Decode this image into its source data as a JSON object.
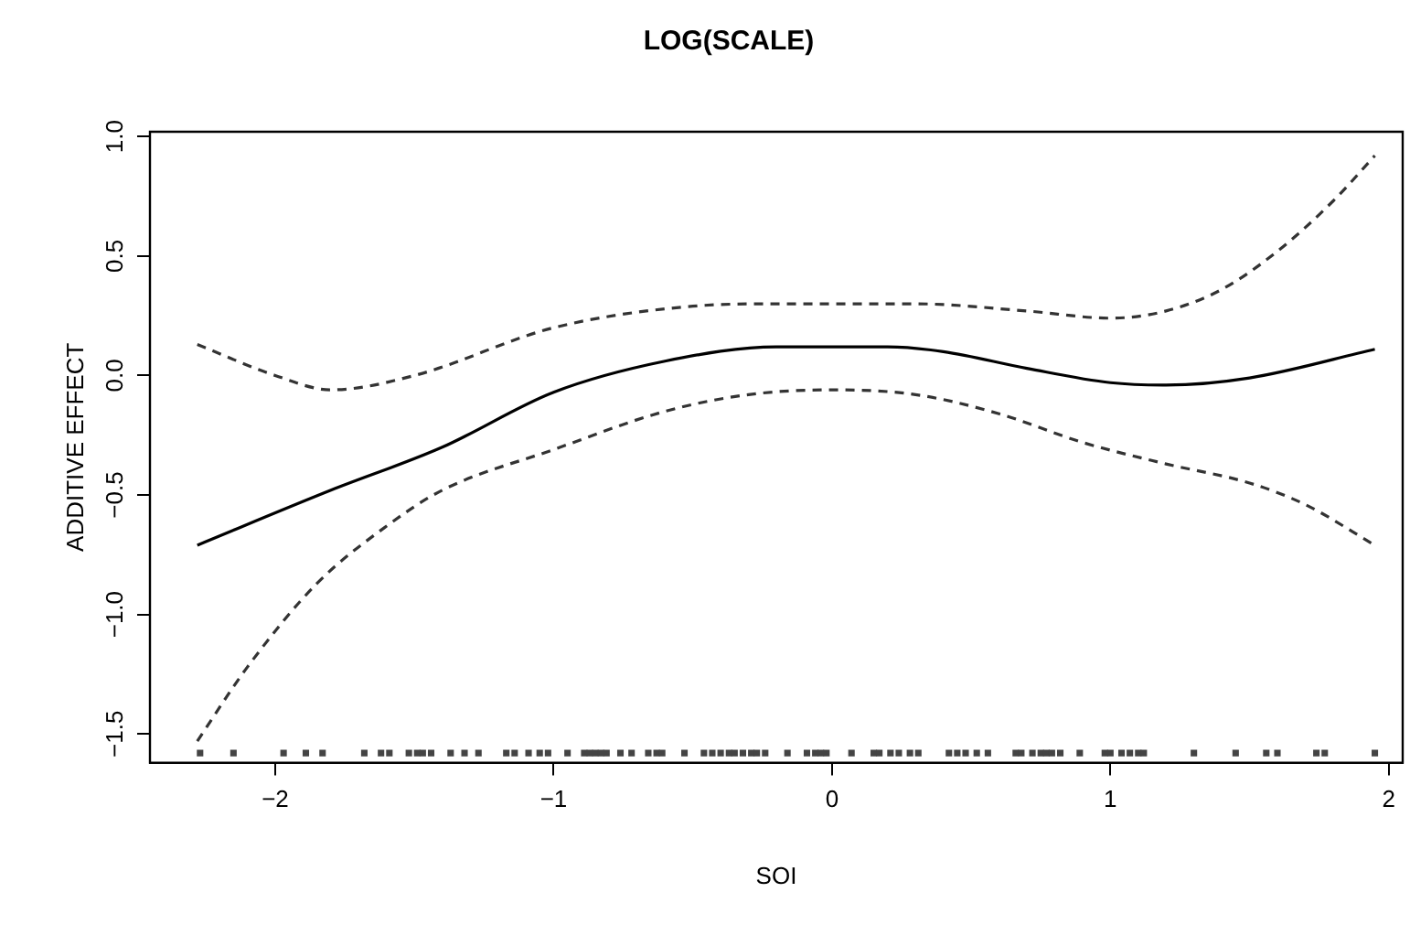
{
  "chart_data": {
    "type": "line",
    "title": "LOG(SCALE)",
    "xlabel": "SOI",
    "ylabel": "ADDITIVE EFFECT",
    "xlim": [
      -2.45,
      2.05
    ],
    "xticks": [
      -2,
      -1,
      0,
      1,
      2
    ],
    "ylim": [
      -1.62,
      1.02
    ],
    "yticks": [
      -1.5,
      {
        "value": -1,
        "label": "−1.0"
      },
      -0.5,
      {
        "value": 0,
        "label": "0.0"
      },
      0.5,
      {
        "value": 1,
        "label": "1.0"
      }
    ],
    "grid": false,
    "legend": false,
    "marker": "none",
    "series": [
      {
        "color": "#000000",
        "line_style": "solid",
        "x": [
          -2.28,
          -1.8,
          -1.4,
          -1.0,
          -0.6,
          -0.2,
          0.2,
          0.4,
          0.7,
          1.0,
          1.2,
          1.5,
          1.95
        ],
        "values": [
          -0.71,
          -0.48,
          -0.3,
          -0.07,
          0.06,
          0.12,
          0.12,
          0.1,
          0.03,
          -0.03,
          -0.04,
          -0.01,
          0.11
        ]
      },
      {
        "color": "#333333",
        "line_style": "dashed",
        "x": [
          -2.28,
          -2.0,
          -1.8,
          -1.5,
          -1.0,
          -0.5,
          -0.2,
          0.3,
          0.7,
          1.0,
          1.2,
          1.4,
          1.6,
          1.8,
          1.95
        ],
        "values": [
          0.13,
          0.0,
          -0.06,
          0.0,
          0.2,
          0.29,
          0.3,
          0.3,
          0.27,
          0.24,
          0.27,
          0.36,
          0.52,
          0.73,
          0.92
        ]
      },
      {
        "color": "#333333",
        "line_style": "dashed",
        "x": [
          -2.28,
          -2.1,
          -1.85,
          -1.6,
          -1.4,
          -1.0,
          -0.6,
          -0.3,
          0.0,
          0.3,
          0.6,
          0.9,
          1.2,
          1.5,
          1.7,
          1.95
        ],
        "values": [
          -1.53,
          -1.22,
          -0.87,
          -0.63,
          -0.48,
          -0.31,
          -0.15,
          -0.08,
          -0.06,
          -0.08,
          -0.16,
          -0.28,
          -0.37,
          -0.45,
          -0.54,
          -0.71
        ]
      },
      {
        "type": "scatter",
        "marker": "square",
        "color": "#444444",
        "x": [
          -2.27,
          -2.15,
          -1.97,
          -1.89,
          -1.83,
          -1.68,
          -1.62,
          -1.59,
          -1.52,
          -1.49,
          -1.47,
          -1.44,
          -1.37,
          -1.32,
          -1.27,
          -1.17,
          -1.14,
          -1.09,
          -1.05,
          -1.02,
          -0.95,
          -0.89,
          -0.87,
          -0.85,
          -0.83,
          -0.81,
          -0.76,
          -0.72,
          -0.66,
          -0.63,
          -0.61,
          -0.53,
          -0.46,
          -0.43,
          -0.4,
          -0.37,
          -0.35,
          -0.32,
          -0.29,
          -0.27,
          -0.24,
          -0.16,
          -0.09,
          -0.06,
          -0.04,
          -0.02,
          0.07,
          0.15,
          0.17,
          0.21,
          0.24,
          0.28,
          0.31,
          0.42,
          0.45,
          0.48,
          0.52,
          0.56,
          0.66,
          0.68,
          0.72,
          0.75,
          0.77,
          0.79,
          0.82,
          0.89,
          0.98,
          1.0,
          1.04,
          1.07,
          1.1,
          1.12,
          1.3,
          1.45,
          1.56,
          1.6,
          1.74,
          1.77,
          1.95
        ],
        "values": [
          -1.58,
          -1.58,
          -1.58,
          -1.58,
          -1.58,
          -1.58,
          -1.58,
          -1.58,
          -1.58,
          -1.58,
          -1.58,
          -1.58,
          -1.58,
          -1.58,
          -1.58,
          -1.58,
          -1.58,
          -1.58,
          -1.58,
          -1.58,
          -1.58,
          -1.58,
          -1.58,
          -1.58,
          -1.58,
          -1.58,
          -1.58,
          -1.58,
          -1.58,
          -1.58,
          -1.58,
          -1.58,
          -1.58,
          -1.58,
          -1.58,
          -1.58,
          -1.58,
          -1.58,
          -1.58,
          -1.58,
          -1.58,
          -1.58,
          -1.58,
          -1.58,
          -1.58,
          -1.58,
          -1.58,
          -1.58,
          -1.58,
          -1.58,
          -1.58,
          -1.58,
          -1.58,
          -1.58,
          -1.58,
          -1.58,
          -1.58,
          -1.58,
          -1.58,
          -1.58,
          -1.58,
          -1.58,
          -1.58,
          -1.58,
          -1.58,
          -1.58,
          -1.58,
          -1.58,
          -1.58,
          -1.58,
          -1.58,
          -1.58,
          -1.58,
          -1.58,
          -1.58,
          -1.58,
          -1.58,
          -1.58,
          -1.58
        ]
      }
    ]
  }
}
